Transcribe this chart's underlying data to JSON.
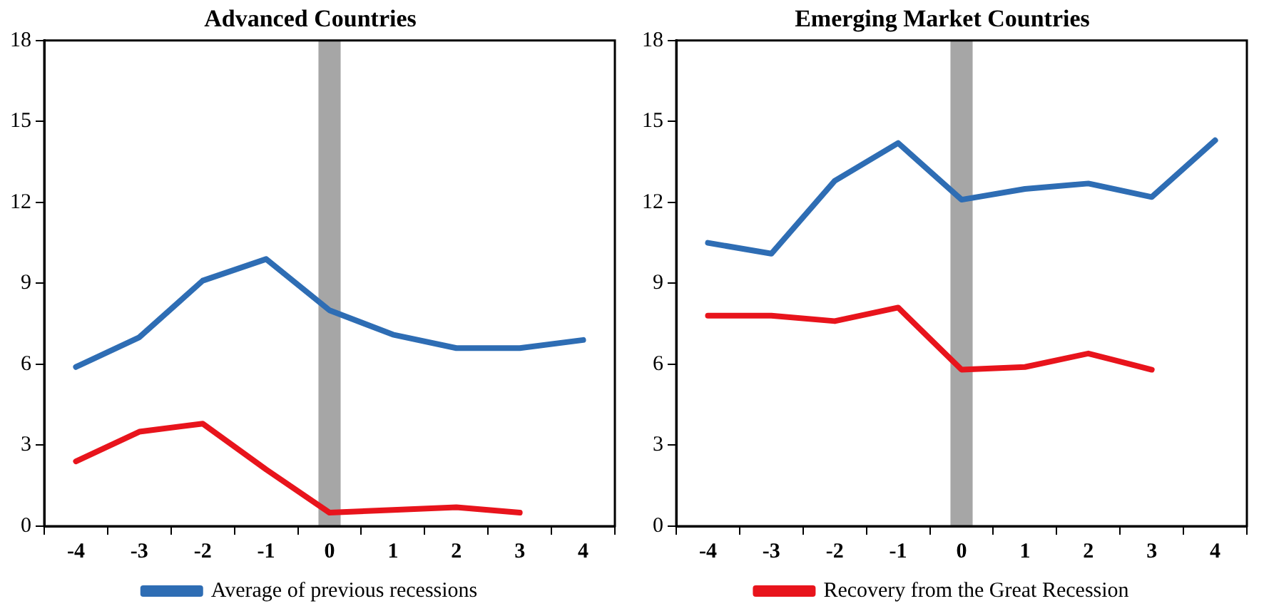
{
  "chart_data": [
    {
      "type": "line",
      "title": "Advanced Countries",
      "categories": [
        "-4",
        "-3",
        "-2",
        "-1",
        "0",
        "1",
        "2",
        "3",
        "4"
      ],
      "ylim": [
        0,
        18
      ],
      "yticks": [
        0,
        3,
        6,
        9,
        12,
        15,
        18
      ],
      "grid": false,
      "legend": "bottom",
      "marker": "none",
      "series": [
        {
          "name": "Average of previous recessions",
          "color": "#2e6db4",
          "values": [
            5.9,
            7.0,
            9.1,
            9.9,
            8.0,
            7.1,
            6.6,
            6.6,
            6.9
          ]
        },
        {
          "color": "#e8141c",
          "values": [
            2.4,
            3.5,
            3.8,
            2.1,
            0.5,
            0.6,
            0.7,
            0.5,
            null
          ]
        }
      ],
      "ref_lines": [
        {
          "axis": "x",
          "value": "0",
          "color": "#a6a6a6"
        }
      ]
    },
    {
      "type": "line",
      "title": "Emerging Market Countries",
      "categories": [
        "-4",
        "-3",
        "-2",
        "-1",
        "0",
        "1",
        "2",
        "3",
        "4"
      ],
      "ylim": [
        0,
        18
      ],
      "yticks": [
        0,
        3,
        6,
        9,
        12,
        15,
        18
      ],
      "grid": false,
      "legend": "bottom",
      "marker": "none",
      "series": [
        {
          "color": "#2e6db4",
          "values": [
            10.5,
            10.1,
            12.8,
            14.2,
            12.1,
            12.5,
            12.7,
            12.2,
            14.3
          ]
        },
        {
          "name": "Recovery from the Great Recession",
          "color": "#e8141c",
          "values": [
            7.8,
            7.8,
            7.6,
            8.1,
            5.8,
            5.9,
            6.4,
            5.8,
            null
          ]
        }
      ],
      "ref_lines": [
        {
          "axis": "x",
          "value": "0",
          "color": "#a6a6a6"
        }
      ]
    }
  ]
}
